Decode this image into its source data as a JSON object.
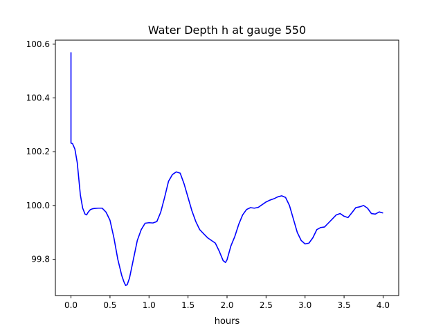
{
  "chart_data": {
    "type": "line",
    "title": "Water Depth h at gauge 550",
    "xlabel": "hours",
    "ylabel": "",
    "xlim": [
      -0.2,
      4.2
    ],
    "ylim": [
      99.665,
      100.615
    ],
    "xticks": [
      0.0,
      0.5,
      1.0,
      1.5,
      2.0,
      2.5,
      3.0,
      3.5,
      4.0
    ],
    "xtick_labels": [
      "0.0",
      "0.5",
      "1.0",
      "1.5",
      "2.0",
      "2.5",
      "3.0",
      "3.5",
      "4.0"
    ],
    "yticks": [
      99.8,
      100.0,
      100.2,
      100.4,
      100.6
    ],
    "ytick_labels": [
      "99.8",
      "100.0",
      "100.2",
      "100.4",
      "100.6"
    ],
    "grid": false,
    "colors": {
      "line": "#0000ff",
      "axes": "#000000",
      "background": "#ffffff"
    },
    "series": [
      {
        "x": [
          0.0,
          0.0,
          0.0,
          0.02,
          0.05,
          0.08,
          0.1,
          0.12,
          0.15,
          0.18,
          0.2,
          0.22,
          0.25,
          0.28,
          0.3,
          0.35,
          0.4,
          0.45,
          0.5,
          0.55,
          0.6,
          0.65,
          0.68,
          0.7,
          0.72,
          0.75,
          0.8,
          0.85,
          0.9,
          0.95,
          1.0,
          1.05,
          1.1,
          1.15,
          1.2,
          1.25,
          1.3,
          1.35,
          1.4,
          1.45,
          1.5,
          1.55,
          1.6,
          1.65,
          1.7,
          1.75,
          1.8,
          1.85,
          1.9,
          1.95,
          1.98,
          2.0,
          2.05,
          2.1,
          2.15,
          2.2,
          2.25,
          2.3,
          2.35,
          2.4,
          2.45,
          2.5,
          2.55,
          2.6,
          2.65,
          2.7,
          2.75,
          2.8,
          2.85,
          2.9,
          2.95,
          3.0,
          3.05,
          3.1,
          3.15,
          3.2,
          3.25,
          3.3,
          3.35,
          3.4,
          3.45,
          3.5,
          3.55,
          3.6,
          3.65,
          3.7,
          3.75,
          3.8,
          3.85,
          3.9,
          3.95,
          4.0
        ],
        "y": [
          100.57,
          100.235,
          100.232,
          100.23,
          100.21,
          100.16,
          100.1,
          100.04,
          99.99,
          99.968,
          99.965,
          99.975,
          99.985,
          99.988,
          99.989,
          99.99,
          99.99,
          99.975,
          99.945,
          99.88,
          99.8,
          99.74,
          99.715,
          99.703,
          99.705,
          99.73,
          99.8,
          99.87,
          99.91,
          99.934,
          99.936,
          99.935,
          99.94,
          99.975,
          100.03,
          100.09,
          100.115,
          100.125,
          100.12,
          100.08,
          100.03,
          99.98,
          99.94,
          99.91,
          99.895,
          99.88,
          99.87,
          99.86,
          99.83,
          99.795,
          99.788,
          99.798,
          99.85,
          99.885,
          99.93,
          99.965,
          99.985,
          99.992,
          99.99,
          99.993,
          100.003,
          100.013,
          100.02,
          100.025,
          100.032,
          100.036,
          100.03,
          100.0,
          99.95,
          99.9,
          99.87,
          99.857,
          99.86,
          99.88,
          99.91,
          99.918,
          99.92,
          99.935,
          99.95,
          99.965,
          99.97,
          99.96,
          99.955,
          99.973,
          99.992,
          99.995,
          100.0,
          99.99,
          99.97,
          99.968,
          99.976,
          99.972
        ]
      }
    ]
  }
}
